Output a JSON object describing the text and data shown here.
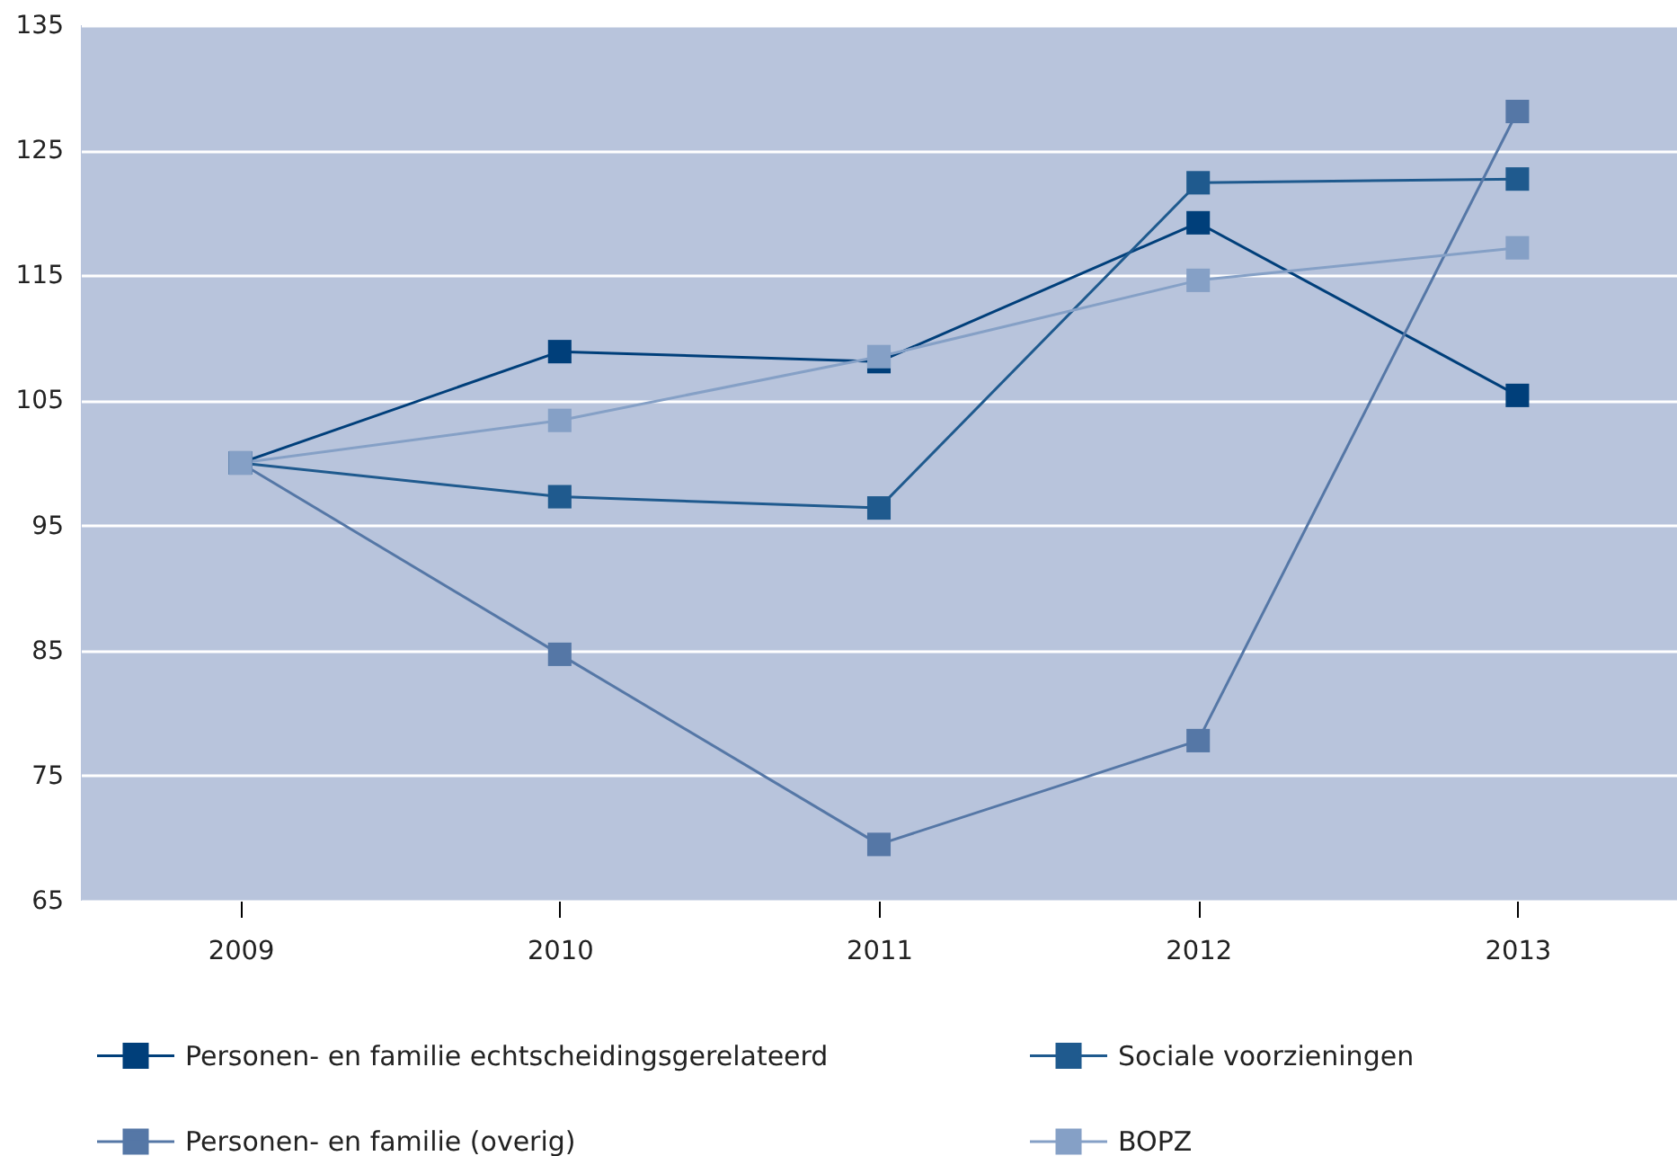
{
  "chart_data": {
    "type": "line",
    "categories": [
      "2009",
      "2010",
      "2011",
      "2012",
      "2013"
    ],
    "series": [
      {
        "name": "Personen- en familie echtscheidingsgerelateerd",
        "color": "#003f7a",
        "values": [
          100,
          108.9,
          108.1,
          119.2,
          105.4
        ]
      },
      {
        "name": "Sociale voorzieningen",
        "color": "#1f5a8e",
        "values": [
          100,
          97.3,
          96.4,
          122.4,
          122.7
        ]
      },
      {
        "name": "Personen- en familie (overig)",
        "color": "#5577a6",
        "values": [
          100,
          84.7,
          69.5,
          77.8,
          128.1
        ]
      },
      {
        "name": "BOPZ",
        "color": "#85a0c6",
        "values": [
          100,
          103.4,
          108.5,
          114.6,
          117.2
        ]
      }
    ],
    "ylim": [
      65,
      135
    ],
    "yticks": [
      65,
      75,
      85,
      95,
      105,
      115,
      125,
      135
    ],
    "grid": "y",
    "legend": "bottom",
    "marker": "square",
    "line_style": "solid"
  }
}
